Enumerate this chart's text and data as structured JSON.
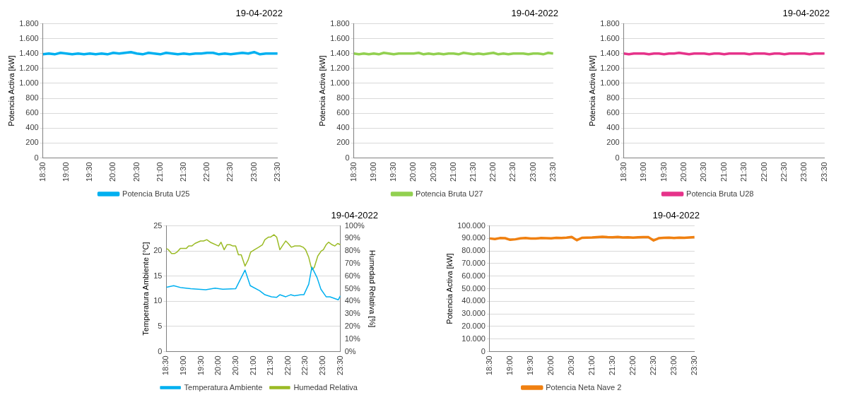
{
  "chart_data": [
    {
      "type": "line",
      "title": "19-04-2022",
      "ylabel": "Potencia Activa [kW]",
      "x": [
        18.5,
        18.625,
        18.75,
        18.875,
        19,
        19.125,
        19.25,
        19.375,
        19.5,
        19.625,
        19.75,
        19.875,
        20,
        20.125,
        20.25,
        20.375,
        20.5,
        20.625,
        20.75,
        20.875,
        21,
        21.125,
        21.25,
        21.375,
        21.5,
        21.625,
        21.75,
        21.875,
        22,
        22.125,
        22.25,
        22.375,
        22.5,
        22.625,
        22.75,
        22.875,
        23,
        23.125,
        23.25,
        23.375,
        23.5
      ],
      "series": [
        {
          "name": "Potencia Bruta U25",
          "color": "#00b0f0",
          "values": [
            1390,
            1400,
            1390,
            1410,
            1400,
            1390,
            1400,
            1390,
            1400,
            1390,
            1400,
            1390,
            1410,
            1400,
            1410,
            1420,
            1400,
            1390,
            1410,
            1400,
            1390,
            1410,
            1400,
            1390,
            1400,
            1390,
            1400,
            1400,
            1410,
            1410,
            1390,
            1400,
            1390,
            1400,
            1410,
            1400,
            1420,
            1390,
            1400,
            1400,
            1400
          ]
        }
      ],
      "xlim": [
        18.5,
        23.5
      ],
      "xticks": [
        {
          "value": 18.5,
          "label": "18:30"
        },
        {
          "value": 19,
          "label": "19:00"
        },
        {
          "value": 19.5,
          "label": "19:30"
        },
        {
          "value": 20,
          "label": "20:00"
        },
        {
          "value": 20.5,
          "label": "20:30"
        },
        {
          "value": 21,
          "label": "21:00"
        },
        {
          "value": 21.5,
          "label": "21:30"
        },
        {
          "value": 22,
          "label": "22:00"
        },
        {
          "value": 22.5,
          "label": "22:30"
        },
        {
          "value": 23,
          "label": "23:00"
        },
        {
          "value": 23.5,
          "label": "23:30"
        }
      ],
      "ylim": [
        0,
        1800
      ],
      "yticks": [
        0,
        200,
        400,
        600,
        800,
        {
          "value": 1000,
          "label": "1.000"
        },
        {
          "value": 1200,
          "label": "1.200"
        },
        {
          "value": 1400,
          "label": "1.400"
        },
        {
          "value": 1600,
          "label": "1.600"
        },
        {
          "value": 1800,
          "label": "1.800"
        }
      ],
      "grid": "y",
      "legend": "bottom",
      "marker": "none"
    },
    {
      "type": "line",
      "title": "19-04-2022",
      "ylabel": "Potencia Activa [kW]",
      "x": [
        18.5,
        18.625,
        18.75,
        18.875,
        19,
        19.125,
        19.25,
        19.375,
        19.5,
        19.625,
        19.75,
        19.875,
        20,
        20.125,
        20.25,
        20.375,
        20.5,
        20.625,
        20.75,
        20.875,
        21,
        21.125,
        21.25,
        21.375,
        21.5,
        21.625,
        21.75,
        21.875,
        22,
        22.125,
        22.25,
        22.375,
        22.5,
        22.625,
        22.75,
        22.875,
        23,
        23.125,
        23.25,
        23.375,
        23.5
      ],
      "series": [
        {
          "name": "Potencia Bruta U27",
          "color": "#92d050",
          "values": [
            1400,
            1390,
            1400,
            1390,
            1400,
            1390,
            1410,
            1400,
            1390,
            1400,
            1400,
            1400,
            1400,
            1410,
            1390,
            1400,
            1390,
            1400,
            1390,
            1400,
            1400,
            1390,
            1410,
            1400,
            1390,
            1400,
            1390,
            1400,
            1410,
            1390,
            1400,
            1390,
            1400,
            1400,
            1400,
            1390,
            1400,
            1400,
            1390,
            1410,
            1400
          ]
        }
      ],
      "xlim": [
        18.5,
        23.5
      ],
      "xticks": [
        {
          "value": 18.5,
          "label": "18:30"
        },
        {
          "value": 19,
          "label": "19:00"
        },
        {
          "value": 19.5,
          "label": "19:30"
        },
        {
          "value": 20,
          "label": "20:00"
        },
        {
          "value": 20.5,
          "label": "20:30"
        },
        {
          "value": 21,
          "label": "21:00"
        },
        {
          "value": 21.5,
          "label": "21:30"
        },
        {
          "value": 22,
          "label": "22:00"
        },
        {
          "value": 22.5,
          "label": "22:30"
        },
        {
          "value": 23,
          "label": "23:00"
        },
        {
          "value": 23.5,
          "label": "23:30"
        }
      ],
      "ylim": [
        0,
        1800
      ],
      "yticks": [
        0,
        200,
        400,
        600,
        800,
        {
          "value": 1000,
          "label": "1.000"
        },
        {
          "value": 1200,
          "label": "1.200"
        },
        {
          "value": 1400,
          "label": "1.400"
        },
        {
          "value": 1600,
          "label": "1.600"
        },
        {
          "value": 1800,
          "label": "1.800"
        }
      ],
      "grid": "y",
      "legend": "bottom",
      "marker": "none"
    },
    {
      "type": "line",
      "title": "19-04-2022",
      "ylabel": "Potencia Activa [kW]",
      "x": [
        18.5,
        18.625,
        18.75,
        18.875,
        19,
        19.125,
        19.25,
        19.375,
        19.5,
        19.625,
        19.75,
        19.875,
        20,
        20.125,
        20.25,
        20.375,
        20.5,
        20.625,
        20.75,
        20.875,
        21,
        21.125,
        21.25,
        21.375,
        21.5,
        21.625,
        21.75,
        21.875,
        22,
        22.125,
        22.25,
        22.375,
        22.5,
        22.625,
        22.75,
        22.875,
        23,
        23.125,
        23.25,
        23.375,
        23.5
      ],
      "series": [
        {
          "name": "Potencia Bruta U28",
          "color": "#e6338a",
          "values": [
            1400,
            1390,
            1400,
            1400,
            1400,
            1390,
            1400,
            1400,
            1390,
            1400,
            1400,
            1410,
            1400,
            1390,
            1400,
            1400,
            1400,
            1390,
            1400,
            1400,
            1390,
            1400,
            1400,
            1400,
            1400,
            1390,
            1400,
            1400,
            1400,
            1390,
            1400,
            1400,
            1390,
            1400,
            1400,
            1400,
            1400,
            1390,
            1400,
            1400,
            1400
          ]
        }
      ],
      "xlim": [
        18.5,
        23.5
      ],
      "xticks": [
        {
          "value": 18.5,
          "label": "18:30"
        },
        {
          "value": 19,
          "label": "19:00"
        },
        {
          "value": 19.5,
          "label": "19:30"
        },
        {
          "value": 20,
          "label": "20:00"
        },
        {
          "value": 20.5,
          "label": "20:30"
        },
        {
          "value": 21,
          "label": "21:00"
        },
        {
          "value": 21.5,
          "label": "21:30"
        },
        {
          "value": 22,
          "label": "22:00"
        },
        {
          "value": 22.5,
          "label": "22:30"
        },
        {
          "value": 23,
          "label": "23:00"
        },
        {
          "value": 23.5,
          "label": "23:30"
        }
      ],
      "ylim": [
        0,
        1800
      ],
      "yticks": [
        0,
        200,
        400,
        600,
        800,
        {
          "value": 1000,
          "label": "1.000"
        },
        {
          "value": 1200,
          "label": "1.200"
        },
        {
          "value": 1400,
          "label": "1.400"
        },
        {
          "value": 1600,
          "label": "1.600"
        },
        {
          "value": 1800,
          "label": "1.800"
        }
      ],
      "grid": "y",
      "legend": "bottom",
      "marker": "none"
    },
    {
      "type": "line",
      "title": "19-04-2022",
      "ylabel": "Temperatura Ambiente [°C]",
      "y2label": "Humedad Relativa [%]",
      "series": [
        {
          "name": "Temperatura Ambiente",
          "color": "#00b0f0",
          "x": [
            18.5,
            18.71,
            18.93,
            19.2,
            19.63,
            19.9,
            20.12,
            20.49,
            20.76,
            20.91,
            21.18,
            21.33,
            21.52,
            21.67,
            21.76,
            21.93,
            22.07,
            22.18,
            22.37,
            22.45,
            22.59,
            22.68,
            22.83,
            22.94,
            23.09,
            23.2,
            23.44,
            23.5
          ],
          "values": [
            12.8,
            13.1,
            12.7,
            12.5,
            12.3,
            12.6,
            12.4,
            12.5,
            16.2,
            13.1,
            12.1,
            11.3,
            10.9,
            10.8,
            11.3,
            10.9,
            11.3,
            11.1,
            11.3,
            11.3,
            13.4,
            16.8,
            14.7,
            12.4,
            10.9,
            10.9,
            10.3,
            11.1
          ]
        },
        {
          "name": "Humedad Relativa",
          "color": "#9bbb25",
          "axis": "y2",
          "x": [
            18.5,
            18.56,
            18.65,
            18.74,
            18.8,
            18.9,
            19.07,
            19.14,
            19.23,
            19.32,
            19.48,
            19.57,
            19.66,
            19.76,
            20,
            20.07,
            20.16,
            20.24,
            20.33,
            20.41,
            20.49,
            20.57,
            20.65,
            20.76,
            20.85,
            20.92,
            21.03,
            21.15,
            21.26,
            21.33,
            21.43,
            21.49,
            21.59,
            21.67,
            21.76,
            21.83,
            21.93,
            22,
            22.09,
            22.19,
            22.34,
            22.43,
            22.5,
            22.59,
            22.68,
            22.75,
            22.85,
            22.95,
            23.01,
            23.09,
            23.16,
            23.26,
            23.34,
            23.42,
            23.5
          ],
          "values": [
            82,
            81,
            78,
            78,
            79,
            82,
            82,
            84,
            84,
            86,
            88,
            88,
            89,
            87,
            84,
            87,
            81,
            85,
            85,
            84,
            84,
            77,
            77,
            68,
            73,
            79,
            81,
            83,
            85,
            89,
            91,
            91,
            93,
            91,
            81,
            84,
            88,
            86,
            83,
            84,
            84,
            83,
            81,
            75,
            65,
            67,
            76,
            80,
            81,
            85,
            87,
            85,
            84,
            86,
            85
          ]
        }
      ],
      "xlim": [
        18.5,
        23.5
      ],
      "xticks": [
        {
          "value": 18.5,
          "label": "18:30"
        },
        {
          "value": 19,
          "label": "19:00"
        },
        {
          "value": 19.5,
          "label": "19:30"
        },
        {
          "value": 20,
          "label": "20:00"
        },
        {
          "value": 20.5,
          "label": "20:30"
        },
        {
          "value": 21,
          "label": "21:00"
        },
        {
          "value": 21.5,
          "label": "21:30"
        },
        {
          "value": 22,
          "label": "22:00"
        },
        {
          "value": 22.5,
          "label": "22:30"
        },
        {
          "value": 23,
          "label": "23:00"
        },
        {
          "value": 23.5,
          "label": "23:30"
        }
      ],
      "ylim": [
        0,
        25
      ],
      "yticks": [
        0,
        5,
        10,
        15,
        20,
        25
      ],
      "y2lim": [
        0,
        100
      ],
      "y2ticks": [
        {
          "value": 0,
          "label": "0%"
        },
        {
          "value": 10,
          "label": "10%"
        },
        {
          "value": 20,
          "label": "20%"
        },
        {
          "value": 30,
          "label": "30%"
        },
        {
          "value": 40,
          "label": "40%"
        },
        {
          "value": 50,
          "label": "50%"
        },
        {
          "value": 60,
          "label": "60%"
        },
        {
          "value": 70,
          "label": "70%"
        },
        {
          "value": 80,
          "label": "80%"
        },
        {
          "value": 90,
          "label": "90%"
        },
        {
          "value": 100,
          "label": "100%"
        }
      ],
      "grid": "y",
      "legend": "bottom",
      "marker": "none"
    },
    {
      "type": "line",
      "title": "19-04-2022",
      "ylabel": "Potencia Activa [kW]",
      "x": [
        18.5,
        18.625,
        18.75,
        18.875,
        19,
        19.125,
        19.25,
        19.375,
        19.5,
        19.625,
        19.75,
        19.875,
        20,
        20.125,
        20.25,
        20.375,
        20.5,
        20.625,
        20.75,
        20.875,
        21,
        21.125,
        21.25,
        21.375,
        21.5,
        21.625,
        21.75,
        21.875,
        22,
        22.125,
        22.25,
        22.375,
        22.5,
        22.625,
        22.75,
        22.875,
        23,
        23.125,
        23.25,
        23.375,
        23.5
      ],
      "series": [
        {
          "name": "Potencia Neta Nave 2",
          "color": "#f08010",
          "values": [
            90000,
            89500,
            90300,
            90200,
            88900,
            89300,
            90100,
            90400,
            90000,
            89900,
            90300,
            90200,
            90100,
            90500,
            90300,
            90600,
            91200,
            88600,
            90500,
            90700,
            90800,
            91100,
            91300,
            91000,
            90900,
            91200,
            90800,
            90900,
            90700,
            90900,
            91100,
            91000,
            88400,
            90200,
            90500,
            90600,
            90400,
            90700,
            90500,
            90800,
            91000
          ]
        }
      ],
      "xlim": [
        18.5,
        23.5
      ],
      "xticks": [
        {
          "value": 18.5,
          "label": "18:30"
        },
        {
          "value": 19,
          "label": "19:00"
        },
        {
          "value": 19.5,
          "label": "19:30"
        },
        {
          "value": 20,
          "label": "20:00"
        },
        {
          "value": 20.5,
          "label": "20:30"
        },
        {
          "value": 21,
          "label": "21:00"
        },
        {
          "value": 21.5,
          "label": "21:30"
        },
        {
          "value": 22,
          "label": "22:00"
        },
        {
          "value": 22.5,
          "label": "22:30"
        },
        {
          "value": 23,
          "label": "23:00"
        },
        {
          "value": 23.5,
          "label": "23:30"
        }
      ],
      "ylim": [
        0,
        100000
      ],
      "yticks": [
        0,
        {
          "value": 10000,
          "label": "10.000"
        },
        {
          "value": 20000,
          "label": "20.000"
        },
        {
          "value": 30000,
          "label": "30.000"
        },
        {
          "value": 40000,
          "label": "40.000"
        },
        {
          "value": 50000,
          "label": "50.000"
        },
        {
          "value": 60000,
          "label": "60.000"
        },
        {
          "value": 70000,
          "label": "70.000"
        },
        {
          "value": 80000,
          "label": "80.000"
        },
        {
          "value": 90000,
          "label": "90.000"
        },
        {
          "value": 100000,
          "label": "100.000"
        }
      ],
      "grid": "y",
      "legend": "bottom",
      "marker": "none"
    }
  ]
}
